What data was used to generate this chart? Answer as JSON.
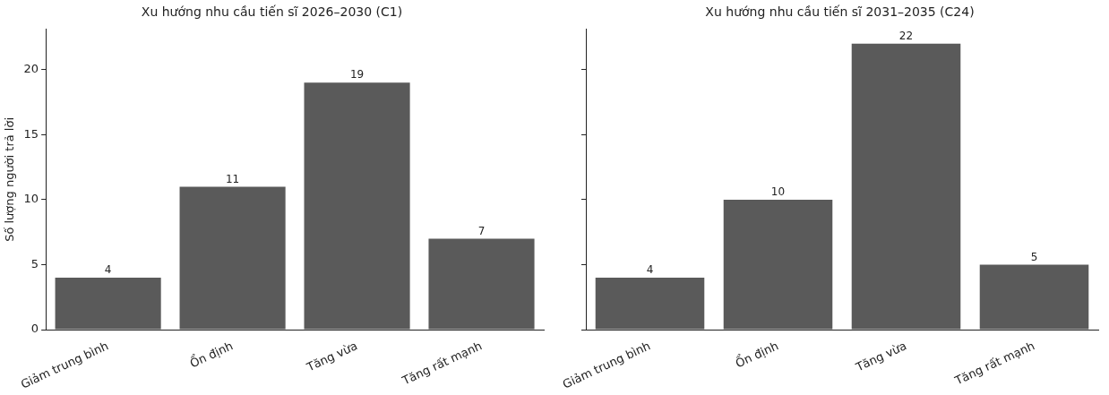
{
  "chart_data": [
    {
      "type": "bar",
      "title": "Xu hướng nhu cầu tiến sĩ 2026–2030 (C1)",
      "ylabel": "Số lượng người trả lời",
      "categories": [
        "Giảm trung bình",
        "Ổn định",
        "Tăng vừa",
        "Tăng rất mạnh"
      ],
      "values": [
        4,
        11,
        19,
        7
      ],
      "color": "#5a5a5a",
      "ylim": [
        0,
        23.1
      ],
      "yticks": [
        0,
        5,
        10,
        15,
        20
      ],
      "data_labels": true
    },
    {
      "type": "bar",
      "title": "Xu hướng nhu cầu tiến sĩ 2031–2035 (C24)",
      "categories": [
        "Giảm trung bình",
        "Ổn định",
        "Tăng vừa",
        "Tăng rất mạnh"
      ],
      "values": [
        4,
        10,
        22,
        5
      ],
      "color": "#5a5a5a",
      "ylim": [
        0,
        23.1
      ],
      "yticks": [
        0,
        5,
        10,
        15,
        20
      ],
      "data_labels": true,
      "tick_labels": "x"
    }
  ]
}
